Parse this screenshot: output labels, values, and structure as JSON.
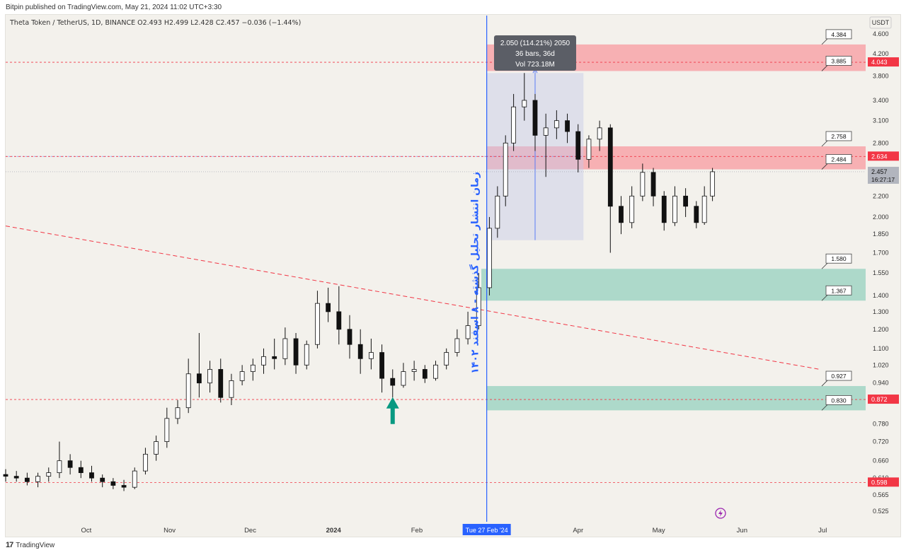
{
  "header": {
    "published_by": "Bitpin published on TradingView.com, May 21, 2024 11:02 UTC+3:30",
    "symbol_line": "Theta Token / TetherUS, 1D, BINANCE  O2.493  H2.499  L2.428  C2.457  −0.036 (−1.44%)"
  },
  "footer": {
    "brand": "TradingView",
    "logo": "17"
  },
  "chart_data": {
    "type": "candlestick",
    "quote_currency": "USDT",
    "scale": "log",
    "y_ticks": [
      "4.600",
      "4.200",
      "3.800",
      "3.400",
      "3.100",
      "2.800",
      "2.200",
      "2.000",
      "1.850",
      "1.700",
      "1.550",
      "1.400",
      "1.300",
      "1.200",
      "1.100",
      "1.020",
      "0.940",
      "0.780",
      "0.720",
      "0.660",
      "0.610",
      "0.565",
      "0.525"
    ],
    "x_ticks": [
      {
        "label": "Oct",
        "date": "2023-10-01"
      },
      {
        "label": "Nov",
        "date": "2023-11-01"
      },
      {
        "label": "Dec",
        "date": "2023-12-01"
      },
      {
        "label": "2024",
        "date": "2024-01-01",
        "bold": true
      },
      {
        "label": "Feb",
        "date": "2024-02-01"
      },
      {
        "label": "Apr",
        "date": "2024-04-01"
      },
      {
        "label": "May",
        "date": "2024-05-01"
      },
      {
        "label": "Jun",
        "date": "2024-06-01"
      },
      {
        "label": "Jul",
        "date": "2024-07-01"
      }
    ],
    "x_range": [
      "2023-09-01",
      "2024-07-17"
    ],
    "y_range": [
      0.5,
      5.0
    ],
    "price_tags": [
      {
        "label": "4.043",
        "value": 4.043,
        "color": "#f23645"
      },
      {
        "label": "2.634",
        "value": 2.634,
        "color": "#f23645"
      },
      {
        "label": "2.457",
        "sub": "16:27:17",
        "value": 2.457,
        "color": "#b2b5be"
      },
      {
        "label": "0.872",
        "value": 0.872,
        "color": "#f23645"
      },
      {
        "label": "0.598",
        "value": 0.598,
        "color": "#f23645"
      }
    ],
    "horizontal_lines": [
      4.043,
      2.634,
      0.872,
      0.598
    ],
    "trend_line": {
      "from": [
        "2023-09-01",
        1.92
      ],
      "to": [
        "2024-06-30",
        1.0
      ]
    },
    "zones": [
      {
        "top": 4.384,
        "bottom": 3.885,
        "from": "2024-02-27",
        "to": "2024-07-17",
        "color": "#f7a9ad"
      },
      {
        "top": 2.758,
        "bottom": 2.484,
        "from": "2024-02-27",
        "to": "2024-07-17",
        "color": "#f7a9ad"
      },
      {
        "top": 1.58,
        "bottom": 1.367,
        "from": "2024-02-25",
        "to": "2024-07-17",
        "color": "#a5d6c7"
      },
      {
        "top": 0.927,
        "bottom": 0.83,
        "from": "2024-02-27",
        "to": "2024-07-17",
        "color": "#a5d6c7"
      }
    ],
    "zone_labels": [
      "4.384",
      "3.885",
      "2.758",
      "2.484",
      "1.580",
      "1.367",
      "0.927",
      "0.830"
    ],
    "measure": {
      "from": "2024-02-27",
      "to": "2024-04-03",
      "low": 1.8,
      "high": 3.85,
      "lines": [
        "2.050 (114.21%) 2050",
        "36 bars, 36d",
        "Vol 723.18M"
      ]
    },
    "vertical_line": {
      "date": "2024-02-27",
      "label": "Tue 27 Feb '24",
      "color": "#2962ff"
    },
    "vertical_text": "زمان انتشار تحلیل گذشته - ۸ اسفند ۱۴۰۲",
    "marker_arrow": {
      "date": "2024-01-23",
      "value": 0.78,
      "color": "#089981"
    },
    "candles": [
      [
        "2023-09-01",
        0.62,
        0.635,
        0.6,
        0.615
      ],
      [
        "2023-09-05",
        0.615,
        0.63,
        0.6,
        0.61
      ],
      [
        "2023-09-09",
        0.61,
        0.625,
        0.59,
        0.6
      ],
      [
        "2023-09-13",
        0.6,
        0.625,
        0.585,
        0.615
      ],
      [
        "2023-09-17",
        0.615,
        0.64,
        0.6,
        0.625
      ],
      [
        "2023-09-21",
        0.625,
        0.72,
        0.61,
        0.66
      ],
      [
        "2023-09-25",
        0.66,
        0.68,
        0.62,
        0.64
      ],
      [
        "2023-09-29",
        0.64,
        0.66,
        0.61,
        0.625
      ],
      [
        "2023-10-03",
        0.625,
        0.645,
        0.6,
        0.61
      ],
      [
        "2023-10-07",
        0.61,
        0.62,
        0.585,
        0.6
      ],
      [
        "2023-10-11",
        0.6,
        0.61,
        0.58,
        0.59
      ],
      [
        "2023-10-15",
        0.59,
        0.605,
        0.575,
        0.585
      ],
      [
        "2023-10-19",
        0.585,
        0.64,
        0.58,
        0.63
      ],
      [
        "2023-10-23",
        0.63,
        0.7,
        0.62,
        0.68
      ],
      [
        "2023-10-27",
        0.68,
        0.74,
        0.66,
        0.72
      ],
      [
        "2023-10-31",
        0.72,
        0.84,
        0.7,
        0.8
      ],
      [
        "2023-11-04",
        0.8,
        0.87,
        0.78,
        0.84
      ],
      [
        "2023-11-08",
        0.84,
        1.05,
        0.82,
        0.98
      ],
      [
        "2023-11-12",
        0.98,
        1.18,
        0.88,
        0.94
      ],
      [
        "2023-11-16",
        0.94,
        1.04,
        0.9,
        1.0
      ],
      [
        "2023-11-20",
        1.0,
        1.05,
        0.86,
        0.88
      ],
      [
        "2023-11-24",
        0.88,
        0.98,
        0.85,
        0.95
      ],
      [
        "2023-11-28",
        0.95,
        1.02,
        0.93,
        0.99
      ],
      [
        "2023-12-02",
        0.99,
        1.05,
        0.95,
        1.02
      ],
      [
        "2023-12-06",
        1.02,
        1.1,
        0.98,
        1.06
      ],
      [
        "2023-12-10",
        1.06,
        1.15,
        1.0,
        1.05
      ],
      [
        "2023-12-14",
        1.05,
        1.21,
        1.02,
        1.15
      ],
      [
        "2023-12-18",
        1.15,
        1.18,
        0.98,
        1.02
      ],
      [
        "2023-12-22",
        1.02,
        1.14,
        1.0,
        1.12
      ],
      [
        "2023-12-26",
        1.12,
        1.43,
        1.1,
        1.35
      ],
      [
        "2023-12-30",
        1.35,
        1.45,
        1.24,
        1.3
      ],
      [
        "2024-01-03",
        1.3,
        1.46,
        1.12,
        1.2
      ],
      [
        "2024-01-07",
        1.2,
        1.28,
        1.05,
        1.12
      ],
      [
        "2024-01-11",
        1.12,
        1.2,
        0.98,
        1.05
      ],
      [
        "2024-01-15",
        1.05,
        1.15,
        1.0,
        1.08
      ],
      [
        "2024-01-19",
        1.08,
        1.12,
        0.9,
        0.96
      ],
      [
        "2024-01-23",
        0.96,
        1.0,
        0.88,
        0.93
      ],
      [
        "2024-01-27",
        0.93,
        1.03,
        0.92,
        0.99
      ],
      [
        "2024-01-31",
        0.99,
        1.04,
        0.95,
        1.0
      ],
      [
        "2024-02-04",
        1.0,
        1.02,
        0.94,
        0.96
      ],
      [
        "2024-02-08",
        0.96,
        1.04,
        0.95,
        1.02
      ],
      [
        "2024-02-12",
        1.02,
        1.1,
        1.0,
        1.08
      ],
      [
        "2024-02-16",
        1.08,
        1.2,
        1.06,
        1.15
      ],
      [
        "2024-02-20",
        1.15,
        1.3,
        1.12,
        1.22
      ],
      [
        "2024-02-24",
        1.22,
        1.55,
        1.2,
        1.45
      ],
      [
        "2024-02-28",
        1.45,
        2.0,
        1.4,
        1.9
      ],
      [
        "2024-03-02",
        1.9,
        2.3,
        1.82,
        2.2
      ],
      [
        "2024-03-05",
        2.2,
        2.9,
        2.1,
        2.8
      ],
      [
        "2024-03-08",
        2.8,
        3.5,
        2.7,
        3.3
      ],
      [
        "2024-03-12",
        3.3,
        3.85,
        3.1,
        3.4
      ],
      [
        "2024-03-16",
        3.4,
        3.5,
        2.7,
        2.9
      ],
      [
        "2024-03-20",
        2.9,
        3.2,
        2.4,
        3.0
      ],
      [
        "2024-03-24",
        3.0,
        3.25,
        2.85,
        3.1
      ],
      [
        "2024-03-28",
        3.1,
        3.2,
        2.8,
        2.95
      ],
      [
        "2024-04-01",
        2.95,
        3.05,
        2.45,
        2.6
      ],
      [
        "2024-04-05",
        2.6,
        2.9,
        2.5,
        2.85
      ],
      [
        "2024-04-09",
        2.85,
        3.1,
        2.7,
        3.0
      ],
      [
        "2024-04-13",
        3.0,
        3.05,
        1.7,
        2.1
      ],
      [
        "2024-04-17",
        2.1,
        2.2,
        1.85,
        1.95
      ],
      [
        "2024-04-21",
        1.95,
        2.3,
        1.9,
        2.2
      ],
      [
        "2024-04-25",
        2.2,
        2.55,
        2.15,
        2.45
      ],
      [
        "2024-04-29",
        2.45,
        2.5,
        2.1,
        2.2
      ],
      [
        "2024-05-03",
        2.2,
        2.25,
        1.88,
        1.95
      ],
      [
        "2024-05-07",
        1.95,
        2.3,
        1.92,
        2.2
      ],
      [
        "2024-05-11",
        2.2,
        2.28,
        2.0,
        2.1
      ],
      [
        "2024-05-15",
        2.1,
        2.15,
        1.9,
        1.95
      ],
      [
        "2024-05-18",
        1.95,
        2.3,
        1.93,
        2.2
      ],
      [
        "2024-05-21",
        2.2,
        2.5,
        2.15,
        2.457
      ]
    ]
  }
}
